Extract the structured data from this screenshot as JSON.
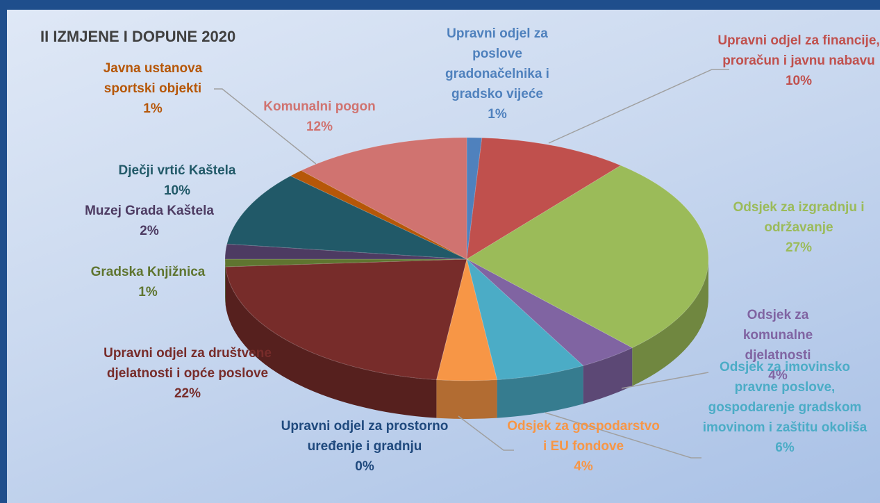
{
  "chart_data": {
    "type": "pie",
    "title": "II IZMJENE I DOPUNE 2020",
    "categories": [
      "Upravni odjel za poslove gradonačelnika i gradsko vijeće",
      "Upravni odjel za financije, proračun i javnu nabavu",
      "Odsjek za izgradnju i održavanje",
      "Odsjek za komunalne djelatnosti",
      "Odsjek za imovinsko pravne poslove, gospodarenje gradskom imovinom i zaštitu okoliša",
      "Odsjek za gospodarstvo i EU fondove",
      "Upravni odjel za prostorno uređenje i gradnju",
      "Upravni odjel za društvene djelatnosti i opće poslove",
      "Gradska Knjižnica",
      "Muzej Grada Kaštela",
      "Dječji vrtić Kaštela",
      "Javna ustanova sportski objekti",
      "Komunalni pogon"
    ],
    "values": [
      1,
      10,
      27,
      4,
      6,
      4,
      0,
      22,
      1,
      2,
      10,
      1,
      12
    ],
    "value_labels": [
      "1%",
      "10%",
      "27%",
      "4%",
      "6%",
      "4%",
      "0%",
      "22%",
      "1%",
      "2%",
      "10%",
      "1%",
      "12%"
    ],
    "colors": [
      "#4f81bd",
      "#c0504d",
      "#9bbb59",
      "#8064a2",
      "#4bacc6",
      "#f79646",
      "#1f497d",
      "#772c2a",
      "#5f7530",
      "#4d3b62",
      "#215968",
      "#b65708",
      "#d07370"
    ]
  }
}
